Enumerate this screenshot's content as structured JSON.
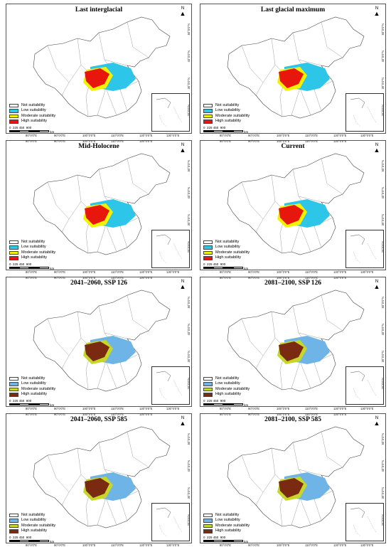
{
  "panels": [
    {
      "title": "Last interglacial",
      "scheme": "A"
    },
    {
      "title": "Last glacial maximum",
      "scheme": "A"
    },
    {
      "title": "Mid-Holocene",
      "scheme": "A"
    },
    {
      "title": "Current",
      "scheme": "A"
    },
    {
      "title": "2041–2060, SSP 126",
      "scheme": "B"
    },
    {
      "title": "2081–2100, SSP 126",
      "scheme": "B"
    },
    {
      "title": "2041–2060, SSP 585",
      "scheme": "B"
    },
    {
      "title": "2081–2100, SSP 585",
      "scheme": "B"
    }
  ],
  "legend": {
    "items": [
      "Not suitability",
      "Low suitability",
      "Moderate suitability",
      "High suitability"
    ]
  },
  "colors": {
    "A": [
      "#ffffff",
      "#2ec6e8",
      "#f2f200",
      "#e8170e"
    ],
    "B": [
      "#ffffff",
      "#6fb4e6",
      "#c7d72a",
      "#7a2a10"
    ]
  },
  "scale_bar": {
    "labels": [
      "0",
      "225 450",
      "900"
    ],
    "unit": "km"
  },
  "north_label": "N",
  "lon_labels": [
    "80°0'0\"E",
    "90°0'0\"E",
    "100°0'0\"E",
    "110°0'0\"E",
    "120°0'0\"E",
    "130°0'0\"E"
  ],
  "lat_labels": [
    "50°0'0\"N",
    "40°0'0\"N",
    "30°0'0\"N",
    "20°0'0\"N"
  ]
}
